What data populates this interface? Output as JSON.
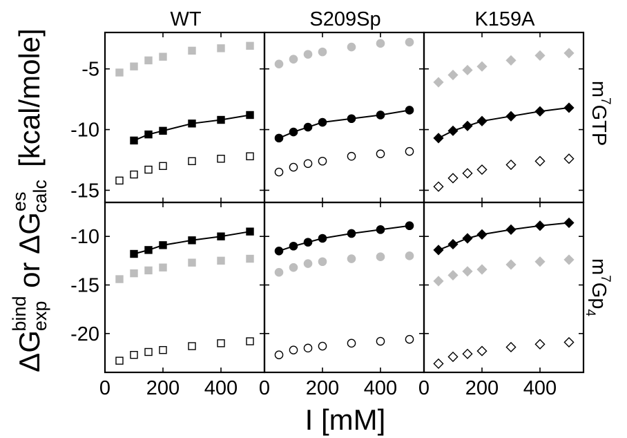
{
  "chart_data": {
    "type": "scatter",
    "layout": "2x3 grid of panels, shared axes",
    "columns": [
      "WT",
      "S209Sp",
      "K159A"
    ],
    "rows": [
      {
        "id": "m7GTP",
        "label_main": "m",
        "label_sup": "7",
        "label_rest": "GTP",
        "ylim": [
          -16,
          -2
        ],
        "yticks": [
          -15,
          -10,
          -5
        ]
      },
      {
        "id": "m7Gp4",
        "label_main": "m",
        "label_sup": "7",
        "label_rest": "Gp",
        "label_sub": "4",
        "ylim": [
          -24,
          -6.5
        ],
        "yticks": [
          -20,
          -15,
          -10
        ]
      }
    ],
    "xlim": [
      0,
      550
    ],
    "xticks": [
      0,
      200,
      400
    ],
    "xlabel": "I [mM]",
    "ylabel": {
      "delta": "ΔG",
      "sup1": "bind",
      "sub1": "exp",
      "or": " or ",
      "delta2": "ΔG",
      "sup2": "es",
      "sub2": "calc",
      "units": " [kcal/mole]"
    },
    "marker_by_column": {
      "WT": "square",
      "S209Sp": "circle",
      "K159A": "diamond"
    },
    "series_style": {
      "exp": {
        "fill": "#000000",
        "stroke": "#000000",
        "connected": true
      },
      "grey": {
        "fill": "#bdbdbd",
        "stroke": "#bdbdbd",
        "connected": false
      },
      "open": {
        "fill": "#ffffff",
        "stroke": "#000000",
        "connected": false
      }
    },
    "panels": [
      {
        "row": 0,
        "col": 0,
        "series": [
          {
            "style": "grey",
            "x": [
              50,
              100,
              150,
              200,
              300,
              400,
              500
            ],
            "y": [
              -5.3,
              -4.8,
              -4.3,
              -4.0,
              -3.5,
              -3.3,
              -3.1
            ]
          },
          {
            "style": "exp",
            "x": [
              100,
              150,
              200,
              300,
              400,
              500
            ],
            "y": [
              -10.9,
              -10.4,
              -10.1,
              -9.5,
              -9.2,
              -8.8
            ]
          },
          {
            "style": "open",
            "x": [
              50,
              100,
              150,
              200,
              300,
              400,
              500
            ],
            "y": [
              -14.2,
              -13.7,
              -13.3,
              -13.0,
              -12.6,
              -12.4,
              -12.2
            ]
          }
        ]
      },
      {
        "row": 0,
        "col": 1,
        "series": [
          {
            "style": "grey",
            "x": [
              50,
              100,
              150,
              200,
              300,
              400,
              500
            ],
            "y": [
              -4.6,
              -4.2,
              -3.8,
              -3.6,
              -3.2,
              -2.9,
              -2.8
            ]
          },
          {
            "style": "exp",
            "x": [
              50,
              100,
              150,
              200,
              300,
              400,
              500
            ],
            "y": [
              -10.7,
              -10.2,
              -9.8,
              -9.4,
              -9.1,
              -8.8,
              -8.4
            ]
          },
          {
            "style": "open",
            "x": [
              50,
              100,
              150,
              200,
              300,
              400,
              500
            ],
            "y": [
              -13.5,
              -13.1,
              -12.8,
              -12.6,
              -12.2,
              -12.0,
              -11.8
            ]
          }
        ]
      },
      {
        "row": 0,
        "col": 2,
        "series": [
          {
            "style": "grey",
            "x": [
              50,
              100,
              150,
              200,
              300,
              400,
              500
            ],
            "y": [
              -6.1,
              -5.5,
              -5.1,
              -4.8,
              -4.3,
              -3.9,
              -3.7
            ]
          },
          {
            "style": "exp",
            "x": [
              50,
              100,
              150,
              200,
              300,
              400,
              500
            ],
            "y": [
              -10.7,
              -10.1,
              -9.7,
              -9.3,
              -8.9,
              -8.5,
              -8.2
            ]
          },
          {
            "style": "open",
            "x": [
              50,
              100,
              150,
              200,
              300,
              400,
              500
            ],
            "y": [
              -14.7,
              -14.0,
              -13.6,
              -13.3,
              -12.9,
              -12.6,
              -12.4
            ]
          }
        ]
      },
      {
        "row": 1,
        "col": 0,
        "series": [
          {
            "style": "grey",
            "x": [
              50,
              100,
              150,
              200,
              300,
              400,
              500
            ],
            "y": [
              -14.4,
              -13.8,
              -13.5,
              -13.2,
              -12.7,
              -12.5,
              -12.3
            ]
          },
          {
            "style": "exp",
            "x": [
              100,
              150,
              200,
              300,
              400,
              500
            ],
            "y": [
              -11.8,
              -11.4,
              -10.9,
              -10.4,
              -10.0,
              -9.5
            ]
          },
          {
            "style": "open",
            "x": [
              50,
              100,
              150,
              200,
              300,
              400,
              500
            ],
            "y": [
              -22.8,
              -22.2,
              -21.9,
              -21.7,
              -21.3,
              -21.0,
              -20.8
            ]
          }
        ]
      },
      {
        "row": 1,
        "col": 1,
        "series": [
          {
            "style": "grey",
            "x": [
              50,
              100,
              150,
              200,
              300,
              400,
              500
            ],
            "y": [
              -13.7,
              -13.2,
              -12.8,
              -12.6,
              -12.3,
              -12.1,
              -12.0
            ]
          },
          {
            "style": "exp",
            "x": [
              50,
              100,
              150,
              200,
              300,
              400,
              500
            ],
            "y": [
              -11.5,
              -11.0,
              -10.6,
              -10.2,
              -9.7,
              -9.3,
              -8.9
            ]
          },
          {
            "style": "open",
            "x": [
              50,
              100,
              150,
              200,
              300,
              400,
              500
            ],
            "y": [
              -22.2,
              -21.7,
              -21.5,
              -21.3,
              -21.0,
              -20.8,
              -20.6
            ]
          }
        ]
      },
      {
        "row": 1,
        "col": 2,
        "series": [
          {
            "style": "grey",
            "x": [
              50,
              100,
              150,
              200,
              300,
              400,
              500
            ],
            "y": [
              -14.6,
              -14.0,
              -13.6,
              -13.4,
              -12.9,
              -12.6,
              -12.4
            ]
          },
          {
            "style": "exp",
            "x": [
              50,
              100,
              150,
              200,
              300,
              400,
              500
            ],
            "y": [
              -11.4,
              -10.8,
              -10.2,
              -9.8,
              -9.3,
              -8.9,
              -8.6
            ]
          },
          {
            "style": "open",
            "x": [
              50,
              100,
              150,
              200,
              300,
              400,
              500
            ],
            "y": [
              -23.1,
              -22.4,
              -22.1,
              -21.8,
              -21.4,
              -21.1,
              -20.9
            ]
          }
        ]
      }
    ]
  }
}
